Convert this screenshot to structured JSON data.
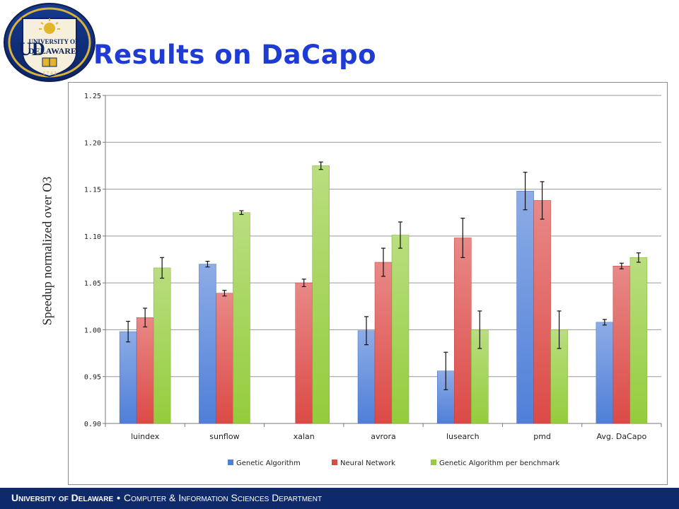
{
  "slide": {
    "title": "Results on DaCapo",
    "footer": {
      "university": "University of Delaware",
      "separator": "•",
      "department": "Computer & Information Sciences Department"
    },
    "logo": {
      "line1": "UNIVERSITY OF",
      "line2": "DELAWARE",
      "monogram": "UD",
      "year": "1 7 4 3",
      "icon": "university-seal-icon"
    }
  },
  "chart_data": {
    "type": "bar",
    "ylabel": "Speedup normalized over O3",
    "xlabel": "",
    "ylim": [
      0.9,
      1.25
    ],
    "yticks": [
      0.9,
      0.95,
      1.0,
      1.05,
      1.1,
      1.15,
      1.2,
      1.25
    ],
    "ytick_labels": [
      "0.90",
      "0.95",
      "1.00",
      "1.05",
      "1.10",
      "1.15",
      "1.20",
      "1.25"
    ],
    "grid": true,
    "legend_position": "bottom",
    "categories": [
      "luindex",
      "sunflow",
      "xalan",
      "avrora",
      "lusearch",
      "pmd",
      "Avg. DaCapo"
    ],
    "series": [
      {
        "name": "Genetic Algorithm",
        "color": "#4f7fd8",
        "values": [
          0.998,
          1.07,
          null,
          0.999,
          0.956,
          1.148,
          1.008
        ],
        "errors": [
          0.011,
          0.003,
          null,
          0.015,
          0.02,
          0.02,
          0.003
        ]
      },
      {
        "name": "Neural Network",
        "color": "#dc4a46",
        "values": [
          1.013,
          1.039,
          1.05,
          1.072,
          1.098,
          1.138,
          1.068
        ],
        "errors": [
          0.01,
          0.003,
          0.004,
          0.015,
          0.021,
          0.02,
          0.003
        ]
      },
      {
        "name": "Genetic Algorithm per benchmark",
        "color": "#94cc3c",
        "values": [
          1.066,
          1.125,
          1.175,
          1.101,
          1.0,
          1.0,
          1.077
        ],
        "errors": [
          0.011,
          0.002,
          0.004,
          0.014,
          0.02,
          0.02,
          0.005
        ]
      }
    ]
  }
}
